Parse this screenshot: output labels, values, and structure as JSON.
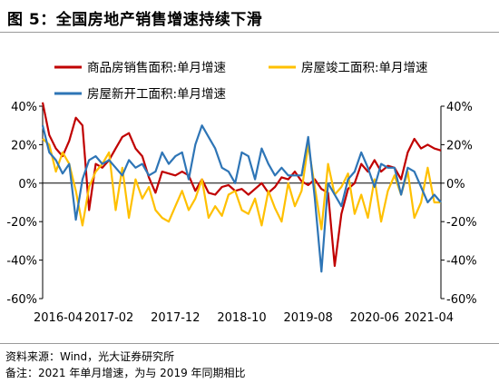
{
  "title": "图 5：全国房地产销售增速持续下滑",
  "source": "资料来源：Wind，光大证券研究所",
  "note": "备注：2021 年单月增速，为与 2019 年同期相比",
  "colors": {
    "sales": "#c00000",
    "completion": "#ffc000",
    "newstarts": "#2e75b6"
  },
  "chart_data": {
    "type": "line",
    "title": "",
    "xlabel": "",
    "ylabel": "",
    "ylim": [
      -60,
      40
    ],
    "yticks": [
      "40%",
      "20%",
      "0%",
      "-20%",
      "-40%",
      "-60%"
    ],
    "ytick_values": [
      40,
      20,
      0,
      -20,
      -40,
      -60
    ],
    "xticks": [
      "2016-04",
      "2017-02",
      "2017-12",
      "2018-10",
      "2019-08",
      "2020-06",
      "2021-04"
    ],
    "xtick_index": [
      0,
      10,
      20,
      30,
      40,
      50,
      60
    ],
    "grid": false,
    "legend": "top",
    "series": [
      {
        "name": "商品房销售面积:单月增速",
        "color": "#c00000",
        "values": [
          42,
          25,
          18,
          14,
          22,
          34,
          30,
          -14,
          10,
          8,
          12,
          18,
          24,
          26,
          18,
          14,
          3,
          -5,
          6,
          5,
          4,
          6,
          4,
          -4,
          2,
          -5,
          -6,
          -2,
          -1,
          -4,
          -3,
          -6,
          -3,
          0,
          -5,
          -2,
          3,
          2,
          6,
          1,
          -1,
          2,
          -3,
          -5,
          -43,
          -16,
          -3,
          0,
          10,
          6,
          12,
          6,
          9,
          8,
          2,
          16,
          23,
          18,
          20,
          18,
          17
        ]
      },
      {
        "name": "房屋竣工面积:单月增速",
        "color": "#ffc000",
        "values": [
          23,
          20,
          6,
          16,
          10,
          -4,
          -22,
          -2,
          6,
          10,
          16,
          -14,
          8,
          -18,
          2,
          -8,
          -2,
          -14,
          -18,
          -20,
          -12,
          -4,
          -14,
          -8,
          2,
          -18,
          -12,
          -17,
          -6,
          -4,
          -14,
          -16,
          -8,
          -22,
          -4,
          -13,
          -20,
          0,
          -12,
          -4,
          20,
          -2,
          -24,
          10,
          -6,
          -2,
          5,
          -16,
          -6,
          -18,
          2,
          -20,
          -4,
          4,
          -6,
          6,
          -18,
          -10,
          8,
          -10,
          -10
        ]
      },
      {
        "name": "房屋新开工面积:单月增速",
        "color": "#2e75b6",
        "values": [
          30,
          16,
          12,
          5,
          10,
          -19,
          2,
          12,
          14,
          10,
          12,
          8,
          4,
          12,
          8,
          10,
          4,
          6,
          16,
          10,
          14,
          16,
          2,
          20,
          30,
          24,
          18,
          8,
          6,
          0,
          16,
          14,
          2,
          18,
          10,
          4,
          8,
          4,
          4,
          4,
          24,
          -8,
          -46,
          0,
          -6,
          -12,
          2,
          6,
          16,
          8,
          -2,
          10,
          8,
          8,
          -6,
          8,
          6,
          -2,
          -10,
          -6,
          -10
        ]
      }
    ]
  }
}
